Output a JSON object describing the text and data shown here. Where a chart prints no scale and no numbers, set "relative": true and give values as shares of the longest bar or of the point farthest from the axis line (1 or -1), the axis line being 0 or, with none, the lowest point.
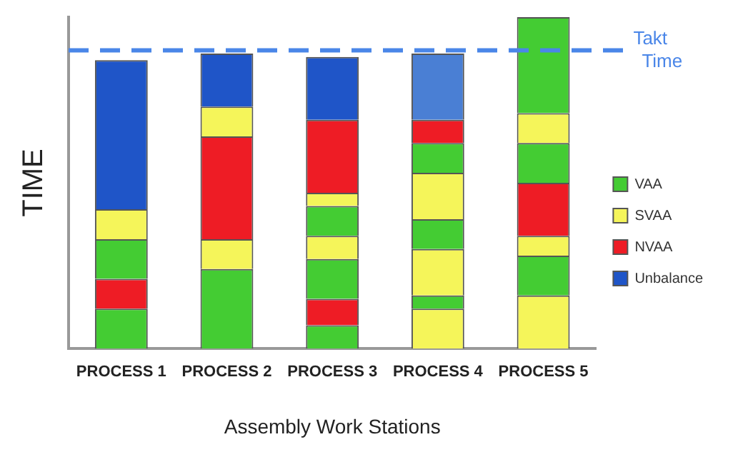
{
  "chart_data": {
    "type": "bar",
    "stacked": true,
    "relative": true,
    "xlabel": "Assembly Work Stations",
    "ylabel": "TIME",
    "categories": [
      "PROCESS 1",
      "PROCESS 2",
      "PROCESS 3",
      "PROCESS 4",
      "PROCESS 5"
    ],
    "series": [
      {
        "name": "VAA",
        "color": "#44cc33",
        "values": [
          0.12,
          0.24,
          0.07,
          null,
          null
        ]
      },
      {
        "name": "SVAA",
        "color": "#f5f55a",
        "values": [
          null,
          null,
          null,
          0.12,
          0.16
        ]
      },
      {
        "name": "NVAA",
        "color": "#ee1c25",
        "values": [
          0.09,
          null,
          0.08,
          null,
          null
        ]
      },
      {
        "color": "#f5f55a",
        "values": [
          null,
          0.09,
          null,
          null,
          null
        ]
      },
      {
        "color": "#44cc33",
        "values": [
          null,
          null,
          null,
          0.04,
          0.12
        ]
      },
      {
        "color": "#44cc33",
        "values": [
          0.12,
          null,
          0.12,
          null,
          null
        ]
      },
      {
        "color": "#ee1c25",
        "values": [
          null,
          0.31,
          null,
          null,
          null
        ]
      },
      {
        "color": "#f5f55a",
        "values": [
          null,
          null,
          null,
          0.14,
          0.06
        ]
      },
      {
        "color": "#f5f55a",
        "values": [
          0.09,
          0.09,
          0.07,
          null,
          null
        ]
      },
      {
        "color": "#44cc33",
        "values": [
          null,
          null,
          null,
          0.09,
          null
        ]
      },
      {
        "color": "#ee1c25",
        "values": [
          null,
          null,
          null,
          null,
          0.16
        ]
      },
      {
        "name": "Unbalance",
        "color": "#1f55c8",
        "values": [
          0.45,
          0.16,
          null,
          null,
          null
        ]
      },
      {
        "color": "#44cc33",
        "values": [
          null,
          null,
          0.09,
          null,
          0.12
        ]
      },
      {
        "color": "#f5f55a",
        "values": [
          null,
          null,
          null,
          0.14,
          null
        ]
      },
      {
        "color": "#f5f55a",
        "values": [
          null,
          null,
          0.04,
          null,
          0.09
        ]
      },
      {
        "color": "#44cc33",
        "values": [
          null,
          null,
          null,
          0.09,
          null
        ]
      },
      {
        "color": "#ee1c25",
        "values": [
          null,
          null,
          0.22,
          0.07,
          null
        ]
      },
      {
        "color": "#44cc33",
        "values": [
          null,
          null,
          null,
          null,
          0.29
        ]
      },
      {
        "color": "#1f55c8",
        "colors": [
          null,
          null,
          "#1f55c8",
          "#4a7fd4",
          null
        ],
        "values": [
          null,
          null,
          0.19,
          0.2,
          null
        ]
      }
    ],
    "ref_lines": [
      {
        "axis": "y",
        "value": 0.9,
        "label": "Takt Time",
        "color": "#4a86e8",
        "line_style": "dashed"
      }
    ],
    "grid": false,
    "legend": "right"
  }
}
